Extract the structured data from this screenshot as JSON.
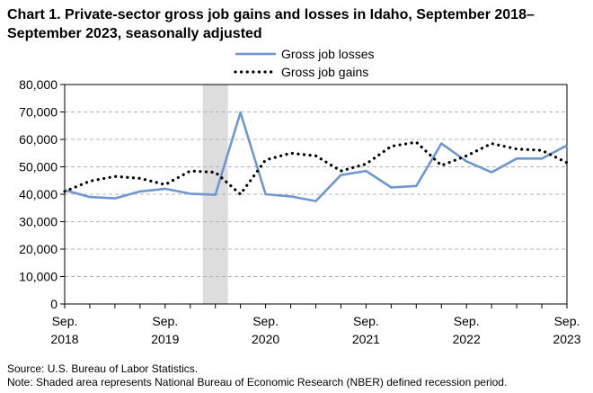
{
  "chart_data": {
    "type": "line",
    "title": "Chart 1. Private-sector gross job gains and losses in Idaho, September 2018–September 2023, seasonally adjusted",
    "xlabel": "",
    "ylabel": "",
    "ylim": [
      0,
      80000
    ],
    "yticks": [
      "0",
      "10,000",
      "20,000",
      "30,000",
      "40,000",
      "50,000",
      "60,000",
      "70,000",
      "80,000"
    ],
    "xtick_labels": [
      {
        "index": 0,
        "month": "Sep.",
        "year": "2018"
      },
      {
        "index": 4,
        "month": "Sep.",
        "year": "2019"
      },
      {
        "index": 8,
        "month": "Sep.",
        "year": "2020"
      },
      {
        "index": 12,
        "month": "Sep.",
        "year": "2021"
      },
      {
        "index": 16,
        "month": "Sep.",
        "year": "2022"
      },
      {
        "index": 20,
        "month": "Sep.",
        "year": "2023"
      }
    ],
    "x": [
      "Sep 2018",
      "Dec 2018",
      "Mar 2019",
      "Jun 2019",
      "Sep 2019",
      "Dec 2019",
      "Mar 2020",
      "Jun 2020",
      "Sep 2020",
      "Dec 2020",
      "Mar 2021",
      "Jun 2021",
      "Sep 2021",
      "Dec 2021",
      "Mar 2022",
      "Jun 2022",
      "Sep 2022",
      "Dec 2022",
      "Mar 2023",
      "Jun 2023",
      "Sep 2023"
    ],
    "recession": {
      "start_index": 5.5,
      "end_index": 6.5
    },
    "series": [
      {
        "name": "Gross job losses",
        "color": "#6f97cf",
        "style": "solid",
        "values": [
          41500,
          39000,
          38500,
          41000,
          42000,
          40200,
          39800,
          69800,
          40000,
          39200,
          37500,
          47000,
          48500,
          42500,
          43000,
          58500,
          52000,
          48000,
          53000,
          53000,
          57800
        ]
      },
      {
        "name": "Gross job gains",
        "color": "#000000",
        "style": "dotted",
        "values": [
          41000,
          44800,
          46500,
          45800,
          43500,
          48500,
          48000,
          40000,
          52500,
          55000,
          54000,
          48500,
          51000,
          57500,
          59000,
          50500,
          54000,
          58500,
          56500,
          56000,
          51500
        ]
      }
    ],
    "legend_position": "top-center",
    "grid": true
  },
  "footer": {
    "source": "Source: U.S. Bureau of Labor Statistics.",
    "note": "Note: Shaded area represents National Bureau of Economic Research (NBER) defined  recession period."
  }
}
